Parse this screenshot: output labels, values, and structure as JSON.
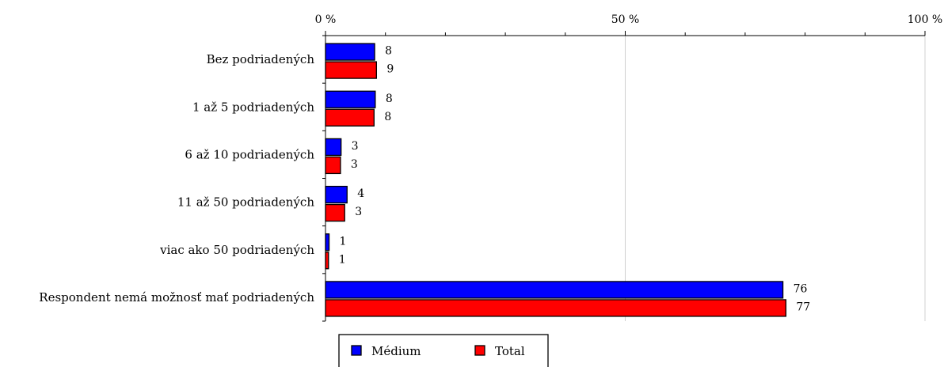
{
  "chart_data": {
    "type": "bar",
    "orientation": "horizontal",
    "categories": [
      "Bez podriadených",
      "1 až 5 podriadených",
      "6 až 10 podriadených",
      "11 až 50 podriadených",
      "viac ako 50 podriadených",
      "Respondent nemá možnosť mať podriadených"
    ],
    "series": [
      {
        "name": "Médium",
        "values": [
          8,
          8,
          3,
          4,
          1,
          76
        ],
        "display_values": [
          8.2,
          8.3,
          2.6,
          3.6,
          0.6,
          76.3
        ],
        "color": "#0000ff"
      },
      {
        "name": "Total",
        "values": [
          9,
          8,
          3,
          3,
          1,
          77
        ],
        "display_values": [
          8.5,
          8.1,
          2.5,
          3.2,
          0.5,
          76.8
        ],
        "color": "#ff0000"
      }
    ],
    "xlim": [
      0,
      100
    ],
    "tick_labels": [
      "0 %",
      "50 %",
      "100 %"
    ],
    "tick_values": [
      0,
      50,
      100
    ],
    "minor_tick_step": 10,
    "grid": "vertical major gridlines",
    "legend_position": "bottom-center"
  }
}
